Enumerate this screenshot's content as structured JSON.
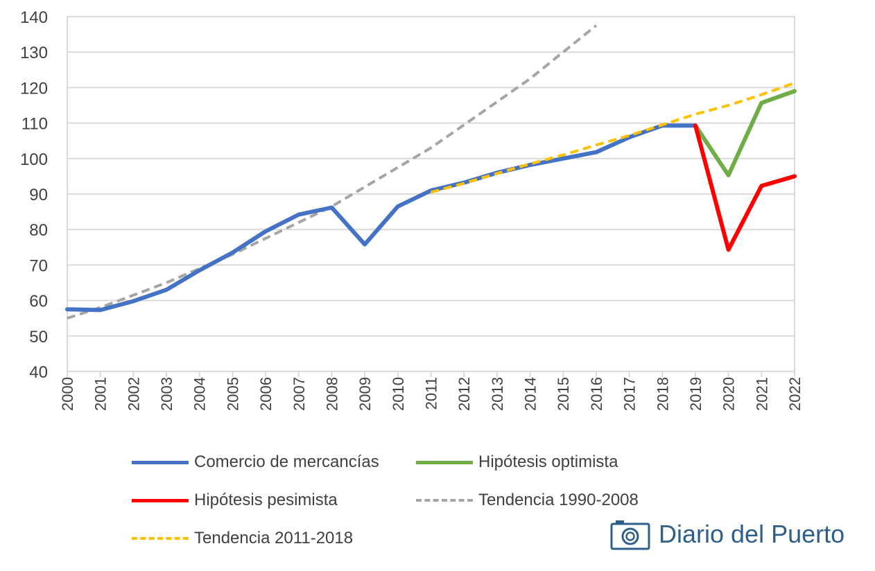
{
  "chart_data": {
    "type": "line",
    "title": "",
    "xlabel": "",
    "ylabel": "",
    "ylim": [
      40,
      140
    ],
    "yticks": [
      40,
      50,
      60,
      70,
      80,
      90,
      100,
      110,
      120,
      130,
      140
    ],
    "categories": [
      "2000",
      "2001",
      "2002",
      "2003",
      "2004",
      "2005",
      "2006",
      "2007",
      "2008",
      "2009",
      "2010",
      "2011",
      "2012",
      "2013",
      "2014",
      "2015",
      "2016",
      "2017",
      "2018",
      "2019",
      "2020",
      "2021",
      "2022"
    ],
    "grid": true,
    "series": [
      {
        "name": "Tendencia 1990-2008",
        "color": "#a5a5a5",
        "dash": true,
        "x": [
          0,
          1,
          2,
          3,
          4,
          5,
          6,
          7,
          8,
          9,
          10,
          11,
          12,
          13,
          14,
          15,
          16
        ],
        "values": [
          55,
          58,
          61.5,
          65,
          69,
          73,
          77.5,
          82,
          86.5,
          92,
          97.5,
          103,
          109.5,
          116,
          122.5,
          130,
          137.5
        ]
      },
      {
        "name": "Comercio de mercancías",
        "color": "#4472c4",
        "dash": false,
        "x": [
          0,
          1,
          2,
          3,
          4,
          5,
          6,
          7,
          8,
          9,
          10,
          11,
          12,
          13,
          14,
          15,
          16,
          17,
          18,
          19
        ],
        "values": [
          57.5,
          57.3,
          59.8,
          63,
          68.5,
          73.5,
          79.5,
          84.2,
          86.2,
          75.8,
          86.5,
          91,
          93.2,
          96,
          98.2,
          100,
          101.8,
          106,
          109.3,
          109.3
        ]
      },
      {
        "name": "Tendencia 2011-2018",
        "color": "#ffc000",
        "dash": true,
        "x": [
          11,
          12,
          13,
          14,
          15,
          16,
          17,
          18,
          19,
          20,
          21,
          22
        ],
        "values": [
          90.5,
          93,
          95.8,
          98.5,
          101,
          103.8,
          106.5,
          109.5,
          112.5,
          115,
          118,
          121.3
        ]
      },
      {
        "name": "Hipótesis optimista",
        "color": "#70ad47",
        "dash": false,
        "x": [
          19,
          20,
          21,
          22
        ],
        "values": [
          109.3,
          95.3,
          115.7,
          119
        ]
      },
      {
        "name": "Hipótesis pesimista",
        "color": "#ff0000",
        "dash": false,
        "x": [
          19,
          20,
          21,
          22
        ],
        "values": [
          109.3,
          74.3,
          92.3,
          95
        ]
      }
    ]
  },
  "legend": {
    "items": [
      {
        "label": "Comercio de mercancías",
        "color": "#4472c4",
        "style": "solid"
      },
      {
        "label": "Hipótesis optimista",
        "color": "#70ad47",
        "style": "solid"
      },
      {
        "label": "Hipótesis pesimista",
        "color": "#ff0000",
        "style": "solid"
      },
      {
        "label": "Tendencia 1990-2008",
        "color": "#a5a5a5",
        "style": "dashed"
      },
      {
        "label": "Tendencia 2011-2018",
        "color": "#ffc000",
        "style": "dashed"
      }
    ]
  },
  "watermark": {
    "text": "Diario del Puerto",
    "icon": "camera-icon",
    "color": "#2e5f8a"
  }
}
